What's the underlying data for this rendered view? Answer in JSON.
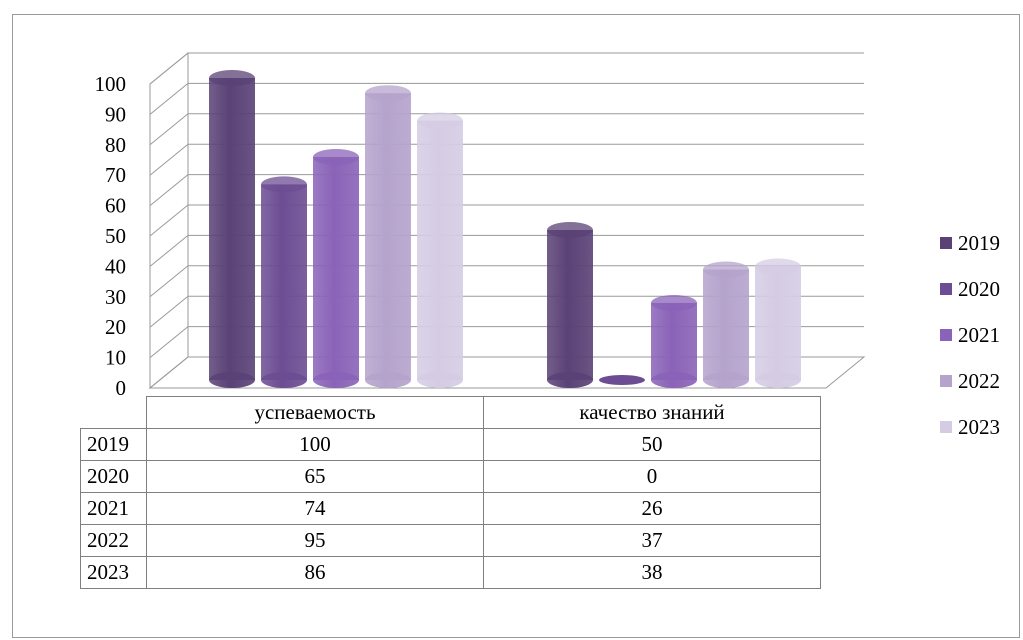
{
  "chart_data": {
    "type": "bar",
    "categories": [
      "успеваемость",
      "качество знаний"
    ],
    "series": [
      {
        "name": "2019",
        "values": [
          100,
          50
        ],
        "color": "#5a4276"
      },
      {
        "name": "2020",
        "values": [
          65,
          0
        ],
        "color": "#6c4d93"
      },
      {
        "name": "2021",
        "values": [
          74,
          26
        ],
        "color": "#8a63b8"
      },
      {
        "name": "2022",
        "values": [
          95,
          37
        ],
        "color": "#b5a3cc"
      },
      {
        "name": "2023",
        "values": [
          86,
          38
        ],
        "color": "#d5cce4"
      }
    ],
    "ylim": [
      0,
      100
    ],
    "yticks": [
      "0",
      "10",
      "20",
      "30",
      "40",
      "50",
      "60",
      "70",
      "80",
      "90",
      "100"
    ],
    "grid": true,
    "legend_placement": "right",
    "style": "3d-cylinder-with-data-table"
  },
  "table": {
    "rows": [
      {
        "year": "2019",
        "values": [
          "100",
          "50"
        ]
      },
      {
        "year": "2020",
        "values": [
          "65",
          "0"
        ]
      },
      {
        "year": "2021",
        "values": [
          "74",
          "26"
        ]
      },
      {
        "year": "2022",
        "values": [
          "95",
          "37"
        ]
      },
      {
        "year": "2023",
        "values": [
          "86",
          "38"
        ]
      }
    ]
  }
}
